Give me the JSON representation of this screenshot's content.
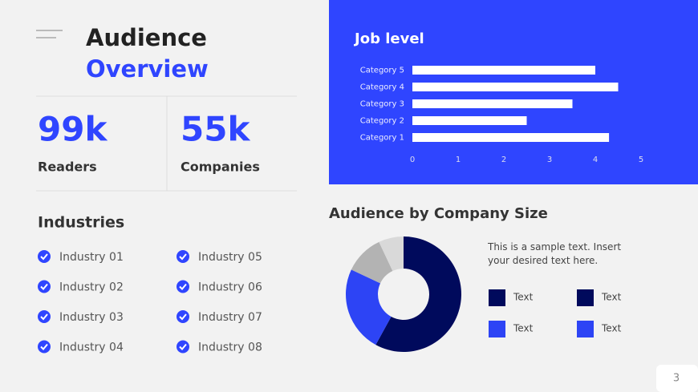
{
  "header": {
    "title": "Audience",
    "subtitle": "Overview"
  },
  "stats": [
    {
      "value": "99k",
      "label": "Readers"
    },
    {
      "value": "55k",
      "label": "Companies"
    }
  ],
  "industries": {
    "title": "Industries",
    "items": [
      "Industry 01",
      "Industry 02",
      "Industry 03",
      "Industry 04",
      "Industry 05",
      "Industry 06",
      "Industry 07",
      "Industry 08"
    ]
  },
  "chart_data": [
    {
      "type": "bar",
      "orientation": "horizontal",
      "title": "Job level",
      "categories": [
        "Category 1",
        "Category 2",
        "Category 3",
        "Category 4",
        "Category 5"
      ],
      "values": [
        4.3,
        2.5,
        3.5,
        4.5,
        4.0
      ],
      "color": "#ffffff",
      "xlim": [
        0,
        5
      ],
      "xticks": [
        0,
        1,
        2,
        3,
        4,
        5
      ]
    },
    {
      "type": "pie",
      "title": "Audience by Company Size",
      "values": [
        58,
        24,
        11,
        7
      ],
      "colors": [
        "#000a5c",
        "#2d44f5",
        "#b3b3b3",
        "#d9d9d9"
      ]
    }
  ],
  "description": "This is a sample text. Insert your desired text here.",
  "legend": [
    {
      "label": "Text",
      "color": "#000a5c"
    },
    {
      "label": "Text",
      "color": "#000a5c"
    },
    {
      "label": "Text",
      "color": "#2d44f5"
    },
    {
      "label": "Text",
      "color": "#2d44f5"
    }
  ],
  "page_number": "3"
}
